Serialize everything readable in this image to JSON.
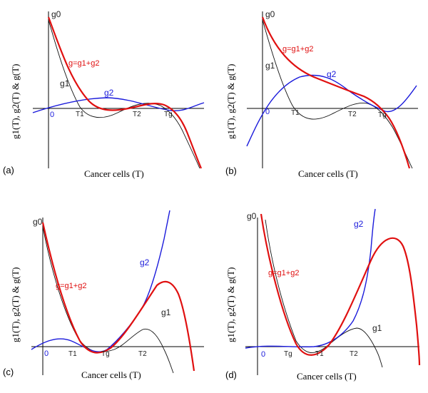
{
  "chart_data": [
    {
      "panel": "(a)",
      "type": "line",
      "xlabel": "Cancer cells (T)",
      "ylabel": "g1(T), g2(T) & g(T)",
      "origin_label": "0",
      "x_markers": [
        "T1",
        "T2",
        "Tg"
      ],
      "curve_labels": {
        "g0": "g0",
        "g1": "g1",
        "g2": "g2",
        "g": "g=g1+g2"
      },
      "series": [
        {
          "name": "g1",
          "color": "#111111",
          "x": [
            0.0,
            0.5,
            1.0,
            1.4,
            1.8,
            2.2,
            2.6,
            3.0,
            3.4,
            3.8,
            4.1,
            4.4,
            4.7,
            5.0
          ],
          "y": [
            2.6,
            1.3,
            0.15,
            -0.2,
            -0.4,
            -0.35,
            -0.12,
            0.05,
            0.1,
            -0.05,
            -0.4,
            -0.95,
            -1.8,
            -2.9
          ]
        },
        {
          "name": "g2",
          "color": "#1a1adb",
          "x": [
            0.0,
            0.5,
            1.0,
            1.5,
            2.0,
            2.5,
            3.0,
            3.5,
            3.8,
            4.1,
            4.4,
            4.7,
            5.0
          ],
          "y": [
            -0.08,
            0.0,
            0.12,
            0.2,
            0.22,
            0.16,
            0.05,
            -0.05,
            -0.05,
            0.0,
            0.07,
            0.14,
            0.2
          ]
        },
        {
          "name": "g",
          "color": "#e01010",
          "x": [
            0.0,
            0.5,
            1.0,
            1.4,
            1.8,
            2.2,
            2.6,
            3.0,
            3.4,
            3.8,
            4.1,
            4.4,
            4.7,
            5.0
          ],
          "y": [
            2.6,
            1.5,
            0.5,
            0.1,
            -0.05,
            0.0,
            0.08,
            0.18,
            0.2,
            0.05,
            -0.3,
            -0.9,
            -1.8,
            -2.9
          ]
        }
      ]
    },
    {
      "panel": "(b)",
      "type": "line",
      "xlabel": "Cancer cells (T)",
      "ylabel": "g1(T), g2(T) & g(T)",
      "origin_label": "0",
      "x_markers": [
        "T1",
        "T2",
        "Tg"
      ],
      "curve_labels": {
        "g0": "g0",
        "g1": "g1",
        "g2": "g2",
        "g": "g=g1+g2"
      },
      "series": [
        {
          "name": "g1",
          "color": "#111111",
          "x": [
            0.0,
            0.5,
            1.0,
            1.5,
            2.0,
            2.5,
            3.0,
            3.5,
            3.9,
            4.3,
            4.7,
            5.0
          ],
          "y": [
            2.4,
            1.0,
            0.05,
            -0.25,
            -0.15,
            0.05,
            0.12,
            0.05,
            -0.15,
            -0.6,
            -1.3,
            -1.9
          ]
        },
        {
          "name": "g2",
          "color": "#1a1adb",
          "x": [
            -0.5,
            0.0,
            0.5,
            1.0,
            1.5,
            2.0,
            2.5,
            3.0,
            3.5,
            3.9,
            4.3,
            4.7,
            5.0
          ],
          "y": [
            -1.1,
            -0.3,
            0.45,
            0.85,
            0.95,
            0.85,
            0.6,
            0.35,
            0.1,
            -0.05,
            0.1,
            0.45,
            0.8
          ]
        },
        {
          "name": "g",
          "color": "#e01010",
          "x": [
            0.0,
            0.5,
            1.0,
            1.5,
            2.0,
            2.5,
            3.0,
            3.5,
            3.9,
            4.3,
            4.7,
            5.0
          ],
          "y": [
            2.4,
            1.5,
            0.95,
            0.65,
            0.5,
            0.38,
            0.3,
            0.15,
            -0.05,
            -0.5,
            -1.1,
            -1.6
          ]
        }
      ]
    },
    {
      "panel": "(c)",
      "type": "line",
      "xlabel": "Cancer cells (T)",
      "ylabel": "g1(T), g2(T) & g(T)",
      "origin_label": "0",
      "x_markers": [
        "T1",
        "Tg",
        "T2"
      ],
      "curve_labels": {
        "g0": "g0",
        "g1": "g1",
        "g2": "g2",
        "g": "g=g1+g2"
      },
      "series": [
        {
          "name": "g1",
          "color": "#111111",
          "x": [
            0.0,
            0.5,
            1.0,
            1.5,
            2.0,
            2.5,
            3.0,
            3.5,
            4.0,
            4.3,
            4.6,
            4.9
          ],
          "y": [
            2.6,
            1.3,
            0.2,
            -0.3,
            -0.2,
            -0.05,
            0.2,
            0.45,
            0.3,
            -0.1,
            -0.6,
            -1.2
          ]
        },
        {
          "name": "g2",
          "color": "#1a1adb",
          "x": [
            -0.2,
            0.0,
            0.5,
            1.0,
            1.5,
            2.0,
            2.5,
            3.0,
            3.5,
            4.0,
            4.5,
            5.0
          ],
          "y": [
            -0.05,
            0.0,
            0.12,
            0.1,
            -0.05,
            -0.1,
            0.1,
            0.5,
            1.1,
            1.9,
            3.0,
            4.2
          ]
        },
        {
          "name": "g",
          "color": "#e01010",
          "x": [
            0.0,
            0.5,
            1.0,
            1.5,
            2.0,
            2.5,
            3.0,
            3.5,
            4.0,
            4.4,
            4.8,
            5.2
          ],
          "y": [
            2.6,
            1.5,
            0.5,
            -0.1,
            -0.05,
            0.4,
            1.0,
            1.6,
            1.9,
            1.6,
            0.5,
            -1.0
          ]
        }
      ]
    },
    {
      "panel": "(d)",
      "type": "line",
      "xlabel": "Cancer cells (T)",
      "ylabel": "g1(T), g2(T) & g(T)",
      "origin_label": "0",
      "x_markers": [
        "Tg",
        "T1",
        "T2"
      ],
      "curve_labels": {
        "g0": "g0",
        "g1": "g1",
        "g2": "g2",
        "g": "g=g1+g2"
      },
      "series": [
        {
          "name": "g1",
          "color": "#111111",
          "x": [
            0.0,
            0.5,
            1.0,
            1.5,
            2.0,
            2.5,
            3.0,
            3.5,
            3.9,
            4.2
          ],
          "y": [
            2.6,
            1.1,
            0.1,
            -0.15,
            -0.1,
            0.1,
            0.3,
            0.25,
            0.0,
            -0.35
          ]
        },
        {
          "name": "g2",
          "color": "#1a1adb",
          "x": [
            -0.4,
            0.0,
            0.5,
            1.0,
            1.5,
            2.0,
            2.5,
            3.0,
            3.5,
            4.0,
            4.5,
            5.0
          ],
          "y": [
            -0.02,
            0.0,
            0.03,
            0.02,
            0.0,
            0.02,
            0.1,
            0.3,
            0.7,
            1.3,
            2.2,
            3.6
          ]
        },
        {
          "name": "g",
          "color": "#e01010",
          "x": [
            -0.3,
            0.0,
            0.5,
            1.0,
            1.5,
            2.0,
            2.5,
            3.0,
            3.5,
            4.0,
            4.5,
            5.0,
            5.4
          ],
          "y": [
            3.6,
            2.6,
            1.2,
            0.2,
            -0.15,
            -0.1,
            0.2,
            0.7,
            1.4,
            2.1,
            2.3,
            1.8,
            0.5
          ]
        }
      ]
    }
  ]
}
